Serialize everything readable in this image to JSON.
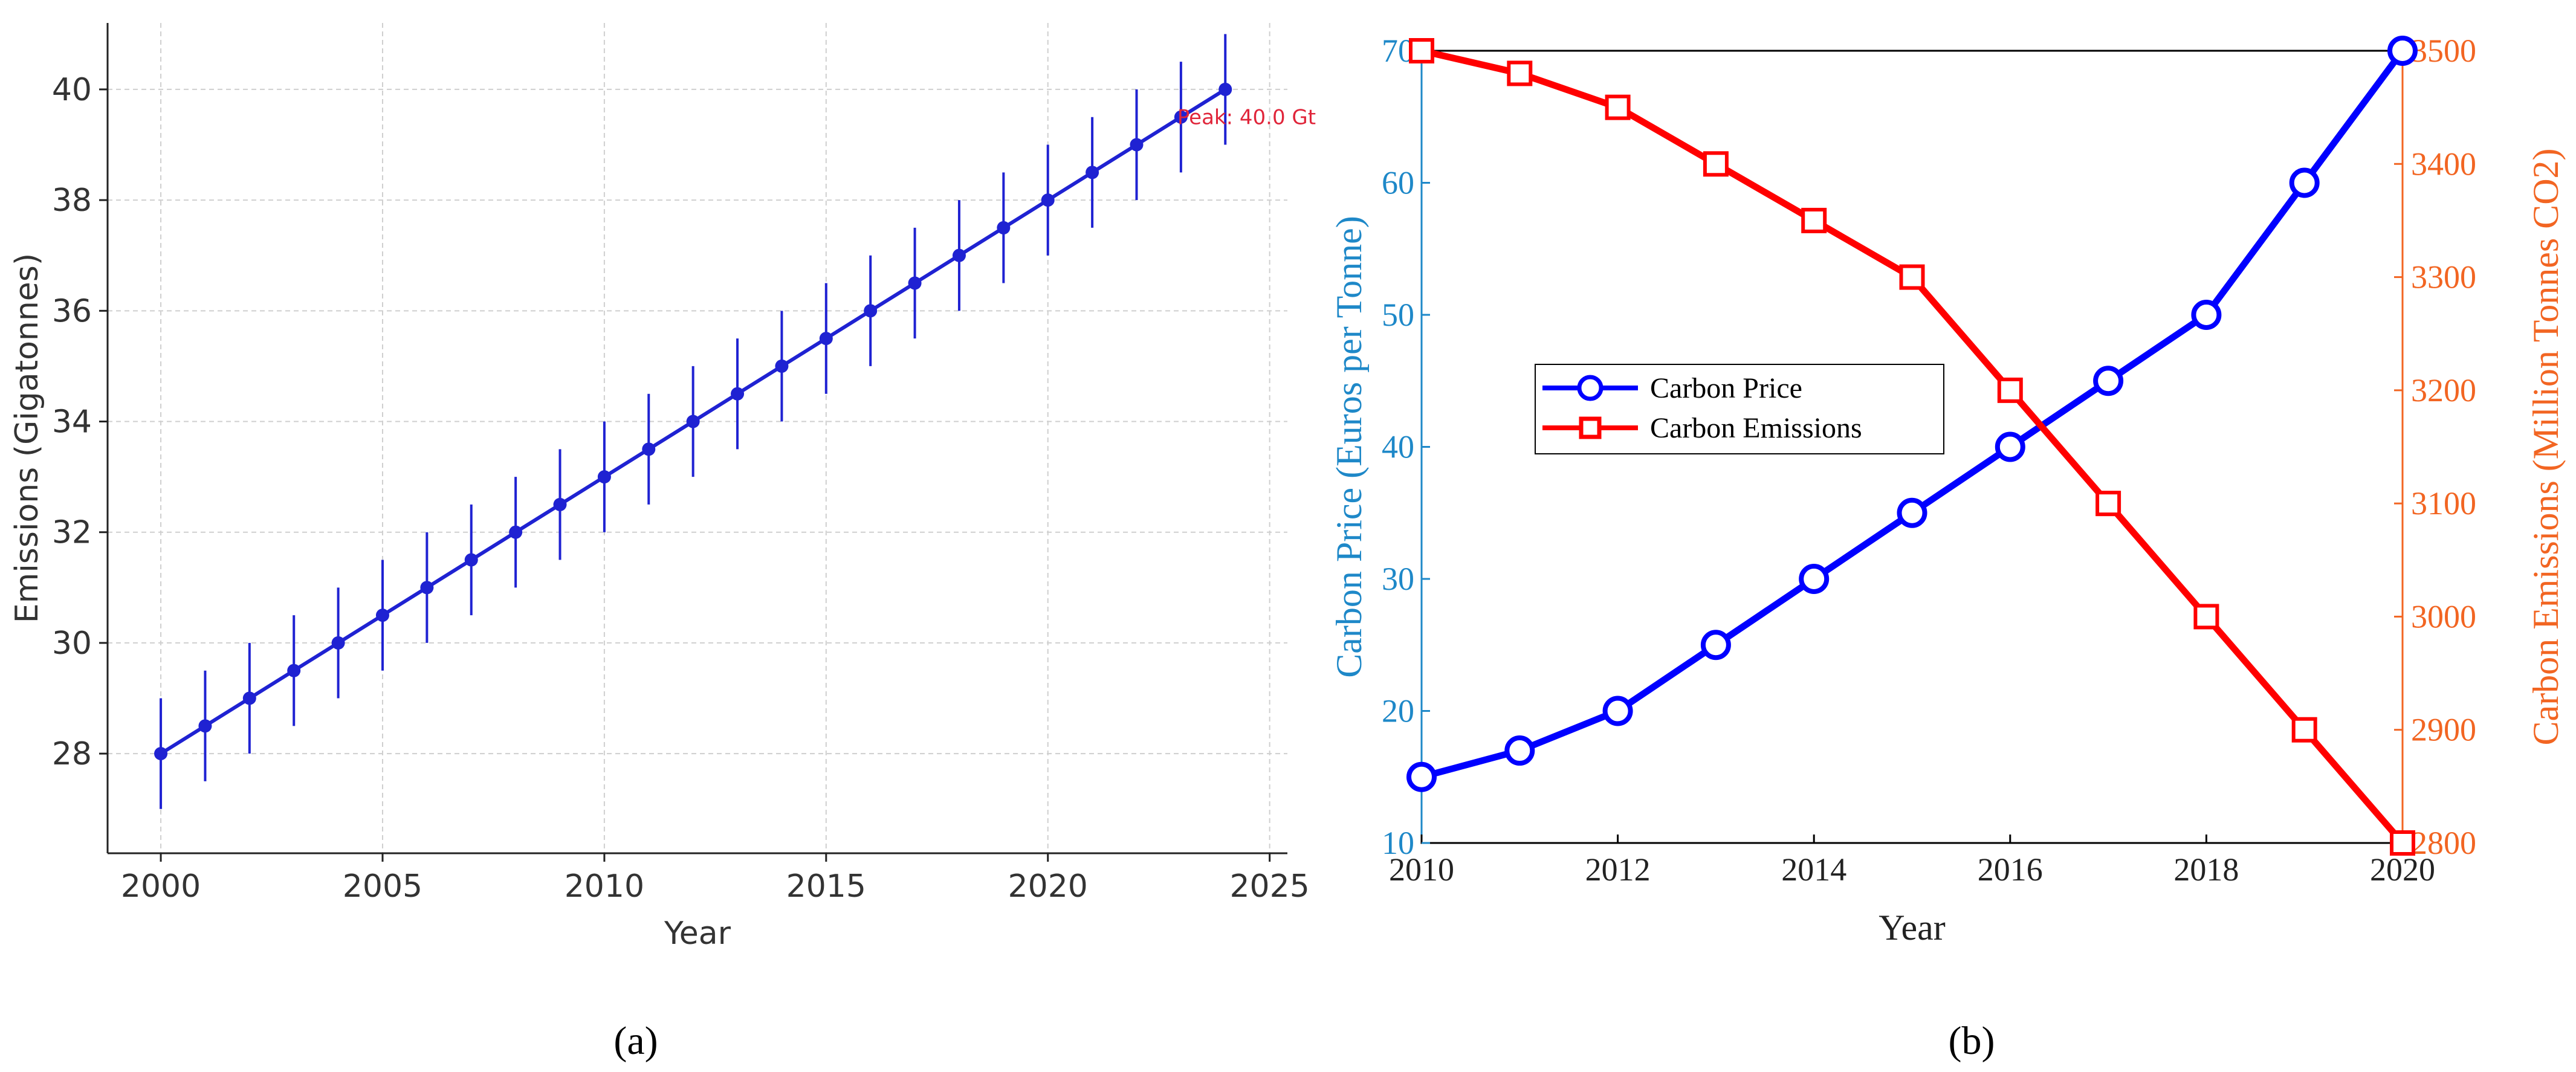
{
  "chart_data": [
    {
      "panel_label": "(a)",
      "type": "line",
      "title": "",
      "xlabel": "Year",
      "ylabel": "Emissions (Gigatonnes)",
      "xlim": [
        1998.8,
        2025.4
      ],
      "ylim": [
        26.2,
        41.2
      ],
      "xticks": [
        2000,
        2005,
        2010,
        2015,
        2020,
        2025
      ],
      "yticks": [
        28,
        30,
        32,
        34,
        36,
        38,
        40
      ],
      "grid": true,
      "x": [
        2000,
        2001,
        2002,
        2003,
        2004,
        2005,
        2006,
        2007,
        2008,
        2009,
        2010,
        2011,
        2012,
        2013,
        2014,
        2015,
        2016,
        2017,
        2018,
        2019,
        2020,
        2021,
        2022,
        2023,
        2024
      ],
      "series": [
        {
          "name": "Emissions",
          "color": "#1f22d2",
          "values": [
            28,
            28.5,
            29,
            29.5,
            30,
            30.5,
            31,
            31.5,
            32,
            32.5,
            33,
            33.5,
            34,
            34.5,
            35,
            35.5,
            36,
            36.5,
            37,
            37.5,
            38,
            38.5,
            39,
            39.5,
            40
          ],
          "error": 1
        }
      ],
      "annotation": {
        "text": "Peak: 40.0 Gt",
        "x": 2023,
        "y": 39.5,
        "color": "#e0253a"
      }
    },
    {
      "panel_label": "(b)",
      "type": "line",
      "title": "",
      "xlabel": "Year",
      "ylabel_left": "Carbon Price (Euros per Tonne)",
      "ylabel_right": "Carbon Emissions (Million Tonnes CO2)",
      "xlim": [
        2010,
        2020
      ],
      "ylim_left": [
        10,
        70
      ],
      "ylim_right": [
        2800,
        3500
      ],
      "xticks": [
        2010,
        2012,
        2014,
        2016,
        2018,
        2020
      ],
      "yticks_left": [
        10,
        20,
        30,
        40,
        50,
        60,
        70
      ],
      "yticks_right": [
        2800,
        2900,
        3000,
        3100,
        3200,
        3300,
        3400,
        3500
      ],
      "left_axis_color": "#1e88c8",
      "right_axis_color": "#f26522",
      "legend_position": "center-left",
      "x": [
        2010,
        2011,
        2012,
        2013,
        2014,
        2015,
        2016,
        2017,
        2018,
        2019,
        2020
      ],
      "series": [
        {
          "name": "Carbon Price",
          "axis": "left",
          "marker": "circle",
          "color": "#0000ff",
          "values": [
            15,
            17,
            20,
            25,
            30,
            35,
            40,
            45,
            50,
            60,
            70
          ]
        },
        {
          "name": "Carbon Emissions",
          "axis": "right",
          "marker": "square",
          "color": "#ff0000",
          "values": [
            3500,
            3480,
            3450,
            3400,
            3350,
            3300,
            3200,
            3100,
            3000,
            2900,
            2800
          ]
        }
      ]
    }
  ]
}
